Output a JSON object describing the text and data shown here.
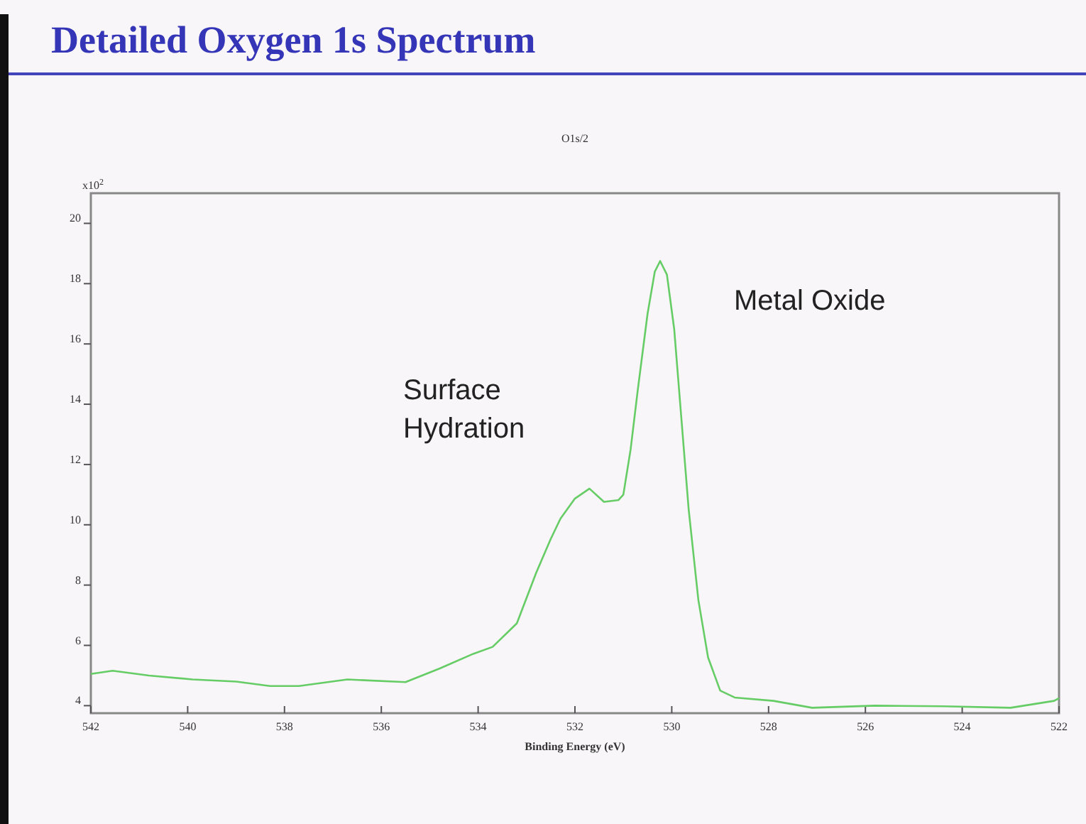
{
  "chart_data": {
    "type": "line",
    "title": "Detailed Oxygen 1s Spectrum",
    "subtitle": "O1s/2",
    "xlabel": "Binding Energy (eV)",
    "ylabel": "x10$^{2}$",
    "x": [
      542,
      541.55,
      540.8,
      539.9,
      539.0,
      538.3,
      537.7,
      536.7,
      535.5,
      534.8,
      534.1,
      533.7,
      533.2,
      532.8,
      532.5,
      532.3,
      532.0,
      531.7,
      531.4,
      531.1,
      531.0,
      530.85,
      530.7,
      530.5,
      530.35,
      530.24,
      530.1,
      529.95,
      529.8,
      529.65,
      529.45,
      529.25,
      529.0,
      528.7,
      527.9,
      527.1,
      525.8,
      524.4,
      523.0,
      522.1,
      522
    ],
    "series": [
      {
        "color": "#66cc66",
        "values": [
          5.05,
          5.16,
          5.0,
          4.87,
          4.8,
          4.65,
          4.65,
          4.87,
          4.78,
          5.23,
          5.72,
          5.95,
          6.73,
          8.41,
          9.53,
          10.2,
          10.87,
          11.2,
          10.76,
          10.82,
          11.0,
          12.5,
          14.5,
          17.0,
          18.4,
          18.75,
          18.3,
          16.5,
          13.5,
          10.5,
          7.5,
          5.6,
          4.5,
          4.27,
          4.16,
          3.93,
          4.0,
          3.98,
          3.93,
          4.16,
          4.25
        ]
      }
    ],
    "xlim": [
      542,
      522
    ],
    "xticks": [
      542,
      540,
      538,
      536,
      534,
      532,
      530,
      528,
      526,
      524,
      522
    ],
    "ylim": [
      3.75,
      21
    ],
    "yticks": [
      4,
      6,
      8,
      10,
      12,
      14,
      16,
      18,
      20
    ],
    "grid": false,
    "marker": "none",
    "line_style": "solid",
    "annotations": [
      "Surface\nHydration",
      "Metal Oxide"
    ]
  }
}
